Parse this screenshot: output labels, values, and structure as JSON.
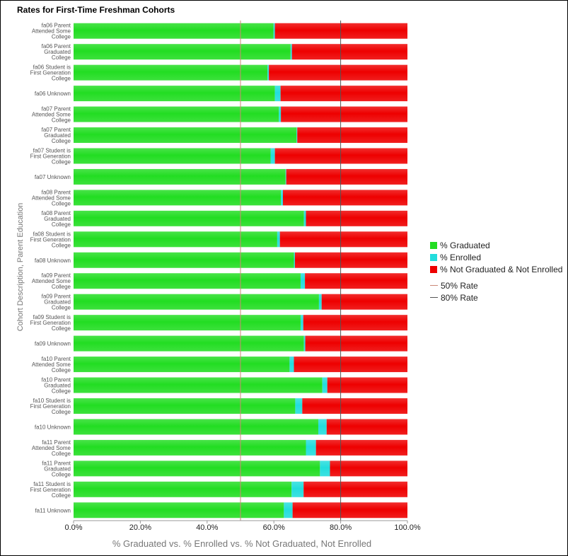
{
  "chart_data": {
    "type": "bar",
    "orientation": "horizontal",
    "stacked": true,
    "title": "Rates for First-Time Freshman Cohorts",
    "xlabel": "% Graduated vs. % Enrolled vs. % Not Graduated, Not Enrolled",
    "ylabel": "Cohort Description, Parent Education",
    "xlim": [
      0,
      100
    ],
    "x_ticks": [
      "0.0%",
      "20.0%",
      "40.0%",
      "60.0%",
      "80.0%",
      "100.0%"
    ],
    "grid": false,
    "legend_position": "right",
    "categories": [
      "fa06 Parent Attended Some College",
      "fa06 Parent Graduated College",
      "fa06 Student is First Generation College",
      "fa06 Unknown",
      "fa07 Parent Attended Some College",
      "fa07 Parent Graduated College",
      "fa07 Student is First Generation College",
      "fa07 Unknown",
      "fa08 Parent Attended Some College",
      "fa08 Parent Graduated College",
      "fa08 Student is First Generation College",
      "fa08 Unknown",
      "fa09 Parent Attended Some College",
      "fa09 Parent Graduated College",
      "fa09 Student is First Generation College",
      "fa09 Unknown",
      "fa10 Parent Attended Some College",
      "fa10 Parent Graduated College",
      "fa10 Student is First Generation College",
      "fa10 Unknown",
      "fa11 Parent Attended Some College",
      "fa11 Parent Graduated College",
      "fa11 Student is First Generation College",
      "fa11 Unknown"
    ],
    "category_label_lines": [
      [
        "fa06 Parent",
        "Attended Some",
        "College"
      ],
      [
        "fa06 Parent",
        "Graduated",
        "College"
      ],
      [
        "fa06 Student is",
        "First Generation",
        "College"
      ],
      [
        "fa06 Unknown"
      ],
      [
        "fa07 Parent",
        "Attended Some",
        "College"
      ],
      [
        "fa07 Parent",
        "Graduated",
        "College"
      ],
      [
        "fa07 Student is",
        "First Generation",
        "College"
      ],
      [
        "fa07 Unknown"
      ],
      [
        "fa08 Parent",
        "Attended Some",
        "College"
      ],
      [
        "fa08 Parent",
        "Graduated",
        "College"
      ],
      [
        "fa08 Student is",
        "First Generation",
        "College"
      ],
      [
        "fa08 Unknown"
      ],
      [
        "fa09 Parent",
        "Attended Some",
        "College"
      ],
      [
        "fa09 Parent",
        "Graduated",
        "College"
      ],
      [
        "fa09 Student is",
        "First Generation",
        "College"
      ],
      [
        "fa09 Unknown"
      ],
      [
        "fa10 Parent",
        "Attended Some",
        "College"
      ],
      [
        "fa10 Parent",
        "Graduated",
        "College"
      ],
      [
        "fa10 Student is",
        "First Generation",
        "College"
      ],
      [
        "fa10 Unknown"
      ],
      [
        "fa11 Parent",
        "Attended Some",
        "College"
      ],
      [
        "fa11 Parent",
        "Graduated",
        "College"
      ],
      [
        "fa11 Student is",
        "First Generation",
        "College"
      ],
      [
        "fa11 Unknown"
      ]
    ],
    "series": [
      {
        "name": "% Graduated",
        "color": "#22dd22",
        "values": [
          59.9,
          65.0,
          58.1,
          60.3,
          61.5,
          66.8,
          59.0,
          63.5,
          62.1,
          69.0,
          61.0,
          66.0,
          68.0,
          73.5,
          68.0,
          69.0,
          64.7,
          74.5,
          66.4,
          73.3,
          69.6,
          73.8,
          65.3,
          63.0
        ]
      },
      {
        "name": "% Enrolled",
        "color": "#22dddd",
        "values": [
          0.4,
          0.4,
          0.4,
          1.7,
          0.6,
          0.2,
          1.3,
          0.2,
          0.6,
          0.6,
          0.8,
          0.3,
          1.3,
          0.8,
          0.8,
          0.4,
          1.3,
          1.5,
          2.1,
          2.5,
          3.0,
          3.0,
          3.6,
          2.6
        ]
      },
      {
        "name": "% Not Graduated & Not Enrolled",
        "color": "#ee0000",
        "values": [
          39.7,
          34.6,
          41.5,
          38.0,
          37.9,
          33.0,
          39.7,
          36.3,
          37.3,
          30.4,
          38.2,
          33.7,
          30.7,
          25.7,
          31.2,
          30.6,
          34.0,
          24.0,
          31.5,
          24.2,
          27.4,
          23.2,
          31.1,
          34.4
        ]
      }
    ],
    "reference_lines": [
      {
        "name": "50% Rate",
        "value": 50,
        "color": "#cc8877"
      },
      {
        "name": "80% Rate",
        "value": 80,
        "color": "#555555"
      }
    ]
  }
}
